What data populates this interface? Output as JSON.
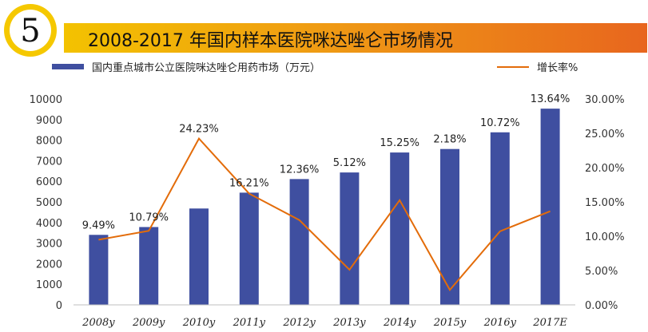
{
  "badge": {
    "number": "5"
  },
  "title": "2008-2017 年国内样本医院咪达唑仑市场情况",
  "colors": {
    "bar": "#3f4fa0",
    "line": "#e36c0a"
  },
  "chart_data": {
    "type": "bar+line",
    "categories": [
      "2008y",
      "2009y",
      "2010y",
      "2011y",
      "2012y",
      "2013y",
      "2014y",
      "2015y",
      "2016y",
      "2017E"
    ],
    "series": [
      {
        "name": "国内重点城市公立医院咪达唑仑用药市场（万元）",
        "type": "bar",
        "axis": "left",
        "values": [
          3400,
          3780,
          4680,
          5450,
          6110,
          6430,
          7400,
          7570,
          8380,
          9530
        ]
      },
      {
        "name": "增长率%",
        "type": "line",
        "axis": "right",
        "values": [
          9.49,
          10.79,
          24.23,
          16.21,
          12.36,
          5.12,
          15.25,
          2.18,
          10.72,
          13.64
        ],
        "labels": [
          "9.49%",
          "10.79%",
          "24.23%",
          "16.21%",
          "12.36%",
          "5.12%",
          "15.25%",
          "2.18%",
          "10.72%",
          "13.64%"
        ]
      }
    ],
    "left_axis": {
      "min": 0,
      "max": 10000,
      "step": 1000,
      "ticks": [
        "0",
        "1000",
        "2000",
        "3000",
        "4000",
        "5000",
        "6000",
        "7000",
        "8000",
        "9000",
        "10000"
      ]
    },
    "right_axis": {
      "min": 0,
      "max": 30,
      "step": 5,
      "ticks": [
        "0.00%",
        "5.00%",
        "10.00%",
        "15.00%",
        "20.00%",
        "25.00%",
        "30.00%"
      ]
    },
    "legend_position": "top",
    "grid": false
  }
}
